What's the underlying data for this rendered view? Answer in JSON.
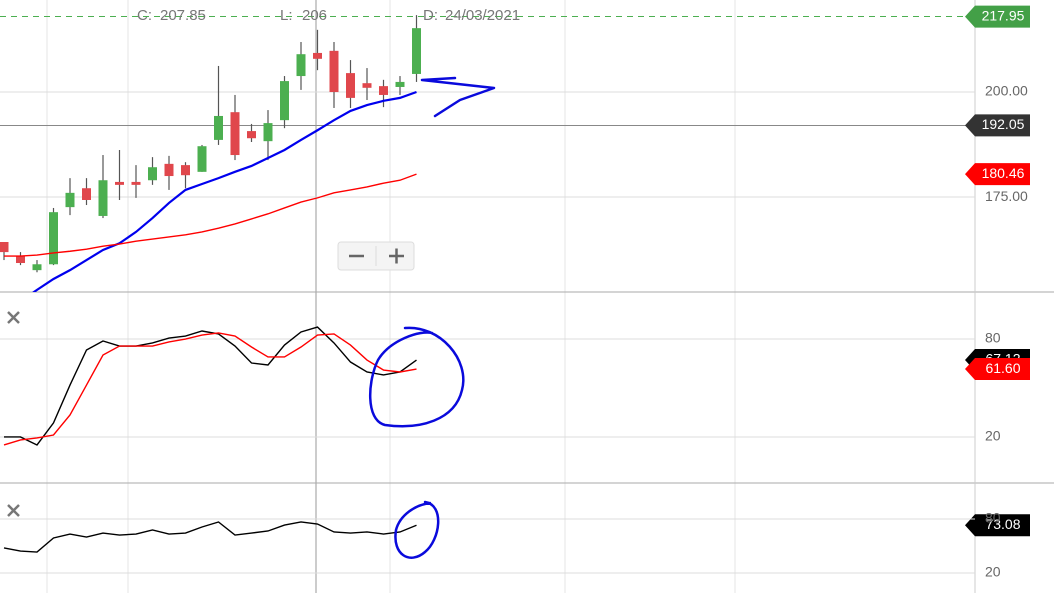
{
  "header": {
    "close_label": "C:",
    "close": 207.85,
    "low_label": "L:",
    "low": 206,
    "date_label": "D:",
    "date": "24/03/2021"
  },
  "chart_data": [
    {
      "type": "candlestick",
      "categories": [
        null,
        null,
        null,
        null,
        null,
        null,
        null,
        null,
        null,
        null,
        null,
        null,
        null,
        null,
        null,
        null,
        null,
        null,
        null,
        null,
        null,
        null,
        null,
        null,
        null,
        null
      ],
      "open": [
        164.3,
        160.95,
        157.6,
        159.0,
        172.6,
        177.1,
        170.5,
        178.6,
        178.6,
        179.0,
        182.9,
        182.6,
        181.0,
        188.6,
        195.2,
        190.7,
        188.3,
        193.3,
        203.8,
        209.3,
        209.8,
        204.5,
        202.1,
        201.4,
        201.2,
        204.3
      ],
      "high": [
        164.3,
        161.9,
        160.0,
        172.4,
        179.5,
        179.5,
        185.0,
        186.2,
        182.6,
        184.5,
        184.8,
        183.3,
        187.4,
        206.2,
        199.3,
        192.4,
        195.7,
        203.8,
        211.9,
        214.8,
        211.9,
        207.6,
        205.7,
        202.9,
        203.8,
        218.3
      ],
      "low": [
        160.0,
        158.8,
        157.1,
        158.8,
        170.7,
        173.1,
        170.0,
        174.3,
        174.8,
        177.9,
        176.7,
        177.1,
        181.0,
        187.4,
        183.8,
        188.1,
        183.8,
        191.4,
        200.5,
        205.2,
        196.2,
        196.2,
        198.1,
        196.4,
        199.3,
        202.4
      ],
      "close": [
        161.9,
        159.3,
        159.0,
        171.4,
        176.0,
        174.3,
        179.0,
        177.9,
        177.9,
        182.1,
        180.0,
        180.2,
        187.1,
        194.3,
        185.0,
        189.0,
        192.6,
        202.6,
        209.0,
        207.9,
        200.0,
        198.6,
        201.0,
        199.3,
        202.4,
        215.2
      ],
      "up_color": "#4caf50",
      "down_color": "#e0474c",
      "series": [
        {
          "color": "#0000ee",
          "values": [
            null,
            150.2,
            152.9,
            155.5,
            157.6,
            160.0,
            162.4,
            164.0,
            166.7,
            170.0,
            173.6,
            176.7,
            178.1,
            179.5,
            181.0,
            182.4,
            184.3,
            186.2,
            188.6,
            190.9,
            193.3,
            195.5,
            196.9,
            197.9,
            198.6,
            200.0
          ]
        },
        {
          "color": "#ff0000",
          "values": [
            160.95,
            160.95,
            161.2,
            161.7,
            162.1,
            162.6,
            163.3,
            163.8,
            164.5,
            165.0,
            165.5,
            166.0,
            166.7,
            167.6,
            168.6,
            169.8,
            171.0,
            172.4,
            173.8,
            174.8,
            176.0,
            176.7,
            177.4,
            178.3,
            179.0,
            180.46
          ]
        }
      ],
      "ylim": [
        152.4,
        221.9
      ],
      "yticks": [
        {
          "value": 200,
          "label": "200.00"
        },
        {
          "value": 175,
          "label": "175.00"
        }
      ],
      "grid": true,
      "markers": [
        {
          "value": 217.95,
          "color": "#43a047"
        },
        {
          "value": 192.05,
          "color": "#333333"
        },
        {
          "value": 180.46,
          "color": "#ff0000"
        }
      ]
    },
    {
      "type": "line",
      "series": [
        {
          "color": "#000000",
          "values": [
            20,
            20,
            15.1,
            28.6,
            51.8,
            73.3,
            78.8,
            75.7,
            75.7,
            77.6,
            80.6,
            81.8,
            84.9,
            83.1,
            75.7,
            65.3,
            64.1,
            76.3,
            84.3,
            87.3,
            77.6,
            65.9,
            59.8,
            58.0,
            59.8,
            67.12
          ]
        },
        {
          "color": "#ff0000",
          "values": [
            15.1,
            18.2,
            19.4,
            21.2,
            33.5,
            51.8,
            70.2,
            75.7,
            75.7,
            75.7,
            78.2,
            80,
            82.4,
            83.7,
            81.8,
            75.1,
            69.0,
            69.0,
            75.1,
            82.4,
            83.1,
            76.3,
            67.1,
            61.0,
            59.8,
            61.6
          ]
        }
      ],
      "ylim": [
        -8.2,
        108.8
      ],
      "yticks": [
        80,
        20
      ],
      "grid": true,
      "markers": [
        {
          "value": 67.12,
          "color": "#000000"
        },
        {
          "value": 61.6,
          "label": "61.60",
          "color": "#ff0000"
        }
      ]
    },
    {
      "type": "line",
      "series": [
        {
          "color": "#000000",
          "values": [
            47.8,
            44.4,
            43.3,
            58.9,
            63.3,
            60,
            64.4,
            62.2,
            63.3,
            67.8,
            63.3,
            64.4,
            71.1,
            76.7,
            62.2,
            64.4,
            66.7,
            73.3,
            76.7,
            74.4,
            65.6,
            64.4,
            65.6,
            63.3,
            65.6,
            73.08
          ]
        }
      ],
      "ylim": [
        -2.2,
        120
      ],
      "yticks": [
        80,
        20
      ],
      "grid": true,
      "markers": [
        {
          "value": 73.08,
          "color": "#000000"
        }
      ]
    }
  ]
}
